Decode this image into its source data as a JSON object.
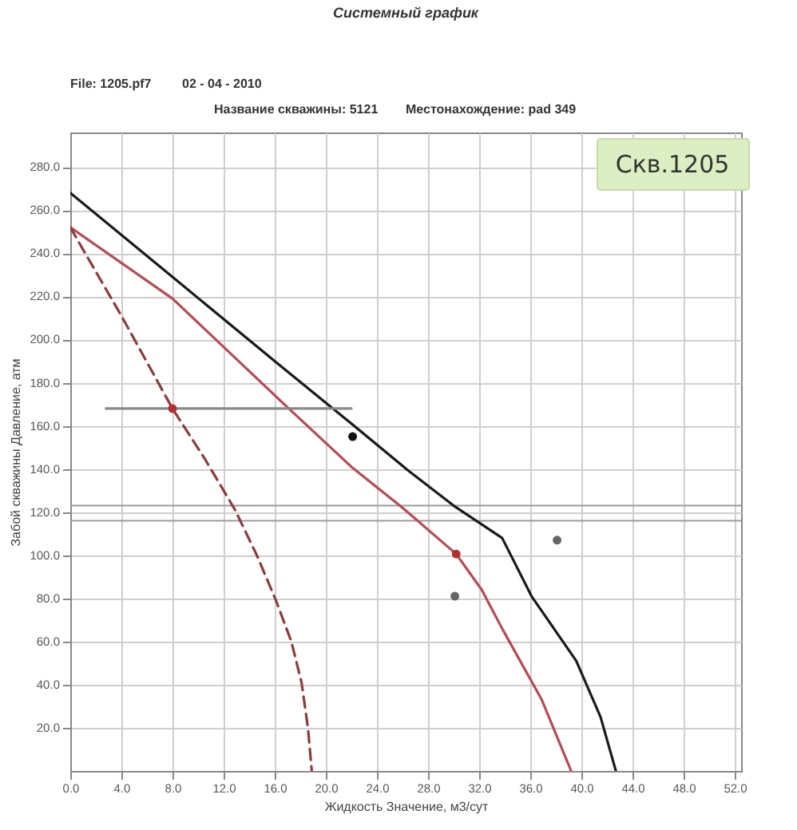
{
  "chart_data": {
    "type": "line",
    "title": "Системный график",
    "xlabel": "Жидкость Значение, м3/сут",
    "ylabel": "Забой скважины Давление, атм",
    "annotations": [
      "File: 1205.pf7",
      "02 - 04 - 2010",
      "Название скважины: 5121",
      "Местонахождение: pad 349",
      "Скв.1205"
    ],
    "xlim": [
      0,
      52.5
    ],
    "ylim": [
      0,
      296
    ],
    "xticks": [
      {
        "value": 0,
        "label": "0.0"
      },
      {
        "value": 4,
        "label": "4.0"
      },
      {
        "value": 8,
        "label": "8.0"
      },
      {
        "value": 12,
        "label": "12.0"
      },
      {
        "value": 16,
        "label": "16.0"
      },
      {
        "value": 20,
        "label": "20.0"
      },
      {
        "value": 24,
        "label": "24.0"
      },
      {
        "value": 28,
        "label": "28.0"
      },
      {
        "value": 32,
        "label": "32.0"
      },
      {
        "value": 36,
        "label": "36.0"
      },
      {
        "value": 40,
        "label": "40.0"
      },
      {
        "value": 44,
        "label": "44.0"
      },
      {
        "value": 48,
        "label": "48.0"
      },
      {
        "value": 52,
        "label": "52.0"
      }
    ],
    "yticks": [
      {
        "value": 20,
        "label": "20.0"
      },
      {
        "value": 40,
        "label": "40.0"
      },
      {
        "value": 60,
        "label": "60.0"
      },
      {
        "value": 80,
        "label": "80.0"
      },
      {
        "value": 100,
        "label": "100.0"
      },
      {
        "value": 120,
        "label": "120.0"
      },
      {
        "value": 140,
        "label": "140.0"
      },
      {
        "value": 160,
        "label": "160.0"
      },
      {
        "value": 180,
        "label": "180.0"
      },
      {
        "value": 200,
        "label": "200.0"
      },
      {
        "value": 220,
        "label": "220.0"
      },
      {
        "value": 240,
        "label": "240.0"
      },
      {
        "value": 260,
        "label": "260.0"
      },
      {
        "value": 280,
        "label": "280.0"
      }
    ],
    "grid": true,
    "marker": "none",
    "ref_lines": [
      {
        "axis": "y",
        "value": 123,
        "color": "#9a9a9a"
      },
      {
        "axis": "y",
        "value": 116,
        "color": "#9a9a9a"
      }
    ],
    "series": [
      {
        "color": "#1a1a1a",
        "x": [
          0,
          8,
          16,
          22,
          26.5,
          30,
          33.8,
          36.1,
          39.6,
          41.5,
          42.7
        ],
        "values": [
          268,
          229,
          190,
          161,
          139,
          123,
          108,
          81,
          51,
          25,
          0
        ]
      },
      {
        "color": "#b84a55",
        "x": [
          0,
          8,
          17.1,
          22,
          26,
          30.2,
          32.2,
          33.8,
          36.9,
          39.2
        ],
        "values": [
          252,
          219,
          168,
          141,
          122,
          100.6,
          84,
          66,
          33,
          0
        ]
      },
      {
        "color": "#8e3b3b",
        "line_style": "dashed",
        "x": [
          0,
          4,
          8,
          10.5,
          12.9,
          14.6,
          16.1,
          17.3,
          18.1,
          18.6,
          18.9
        ],
        "values": [
          252,
          211,
          168,
          145,
          121,
          100,
          79,
          60,
          41,
          20,
          0
        ]
      },
      {
        "color": "#888888",
        "x": [
          2.8,
          22
        ],
        "values": [
          168,
          168
        ]
      },
      {
        "type": "scatter",
        "marker": "circle",
        "color": "#b03030",
        "x": [
          8,
          30.2
        ],
        "values": [
          168,
          100.6
        ]
      },
      {
        "type": "scatter",
        "marker": "circle",
        "color": "#111111",
        "x": [
          22.1
        ],
        "values": [
          155
        ]
      },
      {
        "type": "scatter",
        "marker": "circle",
        "color": "#666666",
        "x": [
          30.1,
          38.1
        ],
        "values": [
          81,
          107
        ]
      }
    ]
  }
}
